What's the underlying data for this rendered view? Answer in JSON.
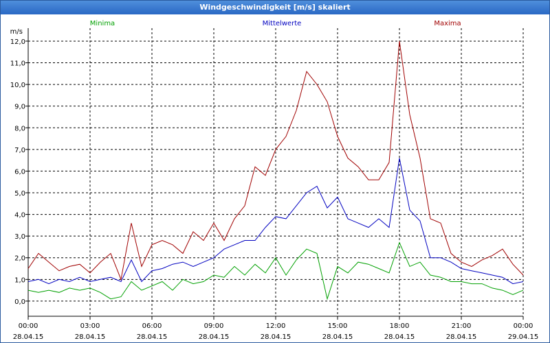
{
  "window": {
    "title": "Windgeschwindigkeit [m/s] skaliert"
  },
  "chart_data": {
    "type": "line",
    "title": "Windgeschwindigkeit [m/s] skaliert",
    "xlabel": "",
    "ylabel": "m/s",
    "ylim": [
      -0.7,
      12.6
    ],
    "xlim": [
      0,
      24
    ],
    "grid": true,
    "legend_placement": "top",
    "y_ticks": [
      "0,0",
      "1,0",
      "2,0",
      "3,0",
      "4,0",
      "5,0",
      "6,0",
      "7,0",
      "8,0",
      "9,0",
      "10,0",
      "11,0",
      "12,0"
    ],
    "x_ticks": [
      {
        "time": "00:00",
        "date": "28.04.15"
      },
      {
        "time": "03:00",
        "date": "28.04.15"
      },
      {
        "time": "06:00",
        "date": "28.04.15"
      },
      {
        "time": "09:00",
        "date": "28.04.15"
      },
      {
        "time": "12:00",
        "date": "28.04.15"
      },
      {
        "time": "15:00",
        "date": "28.04.15"
      },
      {
        "time": "18:00",
        "date": "28.04.15"
      },
      {
        "time": "21:00",
        "date": "28.04.15"
      },
      {
        "time": "00:00",
        "date": "29.04.15"
      }
    ],
    "x_hours": [
      0,
      0.5,
      1,
      1.5,
      2,
      2.5,
      3,
      3.5,
      4,
      4.5,
      5,
      5.5,
      6,
      6.5,
      7,
      7.5,
      8,
      8.5,
      9,
      9.5,
      10,
      10.5,
      11,
      11.5,
      12,
      12.5,
      13,
      13.5,
      14,
      14.5,
      15,
      15.5,
      16,
      16.5,
      17,
      17.5,
      18,
      18.5,
      19,
      19.5,
      20,
      20.5,
      21,
      21.5,
      22,
      22.5,
      23,
      23.5,
      24
    ],
    "series": [
      {
        "name": "Minima",
        "color": "#00a000",
        "values": [
          0.5,
          0.4,
          0.5,
          0.4,
          0.6,
          0.5,
          0.6,
          0.4,
          0.1,
          0.2,
          0.9,
          0.5,
          0.7,
          0.9,
          0.5,
          1.0,
          0.8,
          0.9,
          1.2,
          1.1,
          1.6,
          1.2,
          1.7,
          1.3,
          2.0,
          1.2,
          1.9,
          2.4,
          2.2,
          0.1,
          1.6,
          1.3,
          1.8,
          1.7,
          1.5,
          1.3,
          2.7,
          1.6,
          1.8,
          1.2,
          1.1,
          0.9,
          0.9,
          0.8,
          0.8,
          0.6,
          0.5,
          0.3,
          0.5
        ]
      },
      {
        "name": "Mittelwerte",
        "color": "#0000c0",
        "values": [
          0.9,
          1.0,
          0.8,
          1.0,
          0.9,
          1.1,
          0.9,
          1.0,
          1.1,
          0.9,
          1.9,
          0.9,
          1.4,
          1.5,
          1.7,
          1.8,
          1.6,
          1.8,
          2.0,
          2.4,
          2.6,
          2.8,
          2.8,
          3.4,
          3.9,
          3.8,
          4.4,
          5.0,
          5.3,
          4.3,
          4.8,
          3.8,
          3.6,
          3.4,
          3.8,
          3.4,
          6.6,
          4.2,
          3.7,
          2.0,
          2.0,
          1.8,
          1.5,
          1.4,
          1.3,
          1.2,
          1.1,
          0.8,
          0.9
        ]
      },
      {
        "name": "Maxima",
        "color": "#a00000",
        "values": [
          1.5,
          2.2,
          1.8,
          1.4,
          1.6,
          1.7,
          1.3,
          1.8,
          2.2,
          1.0,
          3.6,
          1.6,
          2.6,
          2.8,
          2.6,
          2.2,
          3.2,
          2.8,
          3.6,
          2.8,
          3.8,
          4.4,
          6.2,
          5.8,
          7.0,
          7.6,
          8.8,
          10.6,
          10.0,
          9.2,
          7.6,
          6.6,
          6.2,
          5.6,
          5.6,
          6.4,
          12.0,
          8.6,
          6.6,
          3.8,
          3.6,
          2.2,
          1.8,
          1.6,
          1.9,
          2.1,
          2.4,
          1.7,
          1.2
        ]
      }
    ]
  }
}
